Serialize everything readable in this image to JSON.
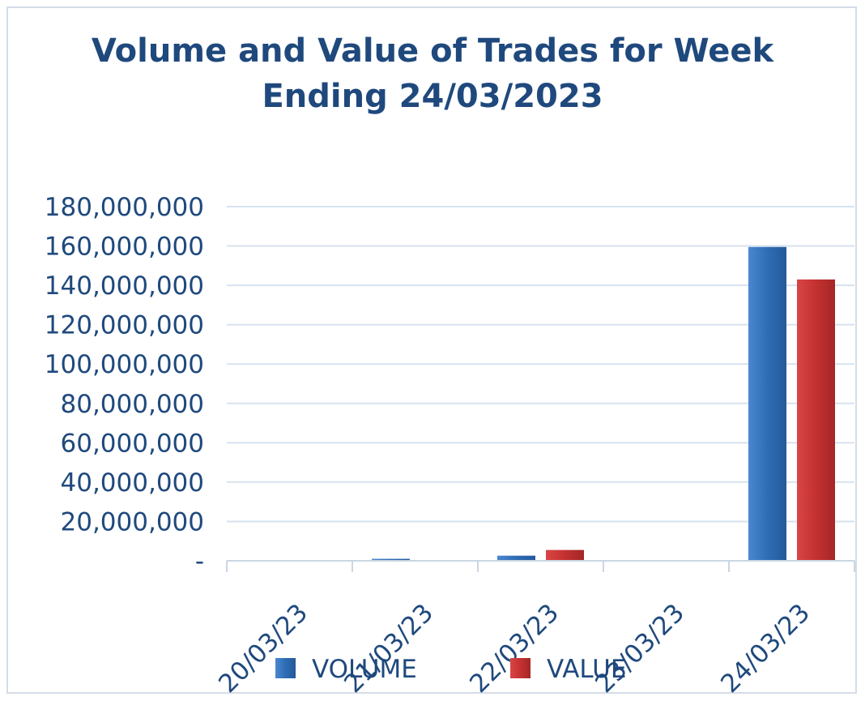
{
  "chart_data": {
    "type": "bar",
    "title_lines": [
      "Volume and Value of Trades for Week",
      "Ending 24/03/2023"
    ],
    "categories": [
      "20/03/23",
      "21/03/23",
      "22/03/23",
      "23/03/23",
      "24/03/23"
    ],
    "series": [
      {
        "name": "VOLUME",
        "color": "#2e6db4",
        "values": [
          150000,
          1000000,
          2600000,
          200000,
          159500000
        ]
      },
      {
        "name": "VALUE",
        "color": "#c43131",
        "values": [
          100000,
          300000,
          5500000,
          100000,
          143000000
        ]
      }
    ],
    "ylim": [
      0,
      180000000
    ],
    "yticks": [
      0,
      20000000,
      40000000,
      60000000,
      80000000,
      100000000,
      120000000,
      140000000,
      160000000,
      180000000
    ],
    "ytick_labels": [
      "-",
      "20,000,000",
      "40,000,000",
      "60,000,000",
      "80,000,000",
      "100,000,000",
      "120,000,000",
      "140,000,000",
      "160,000,000",
      "180,000,000"
    ],
    "xlabel": "",
    "ylabel": "",
    "legend_position": "bottom"
  }
}
